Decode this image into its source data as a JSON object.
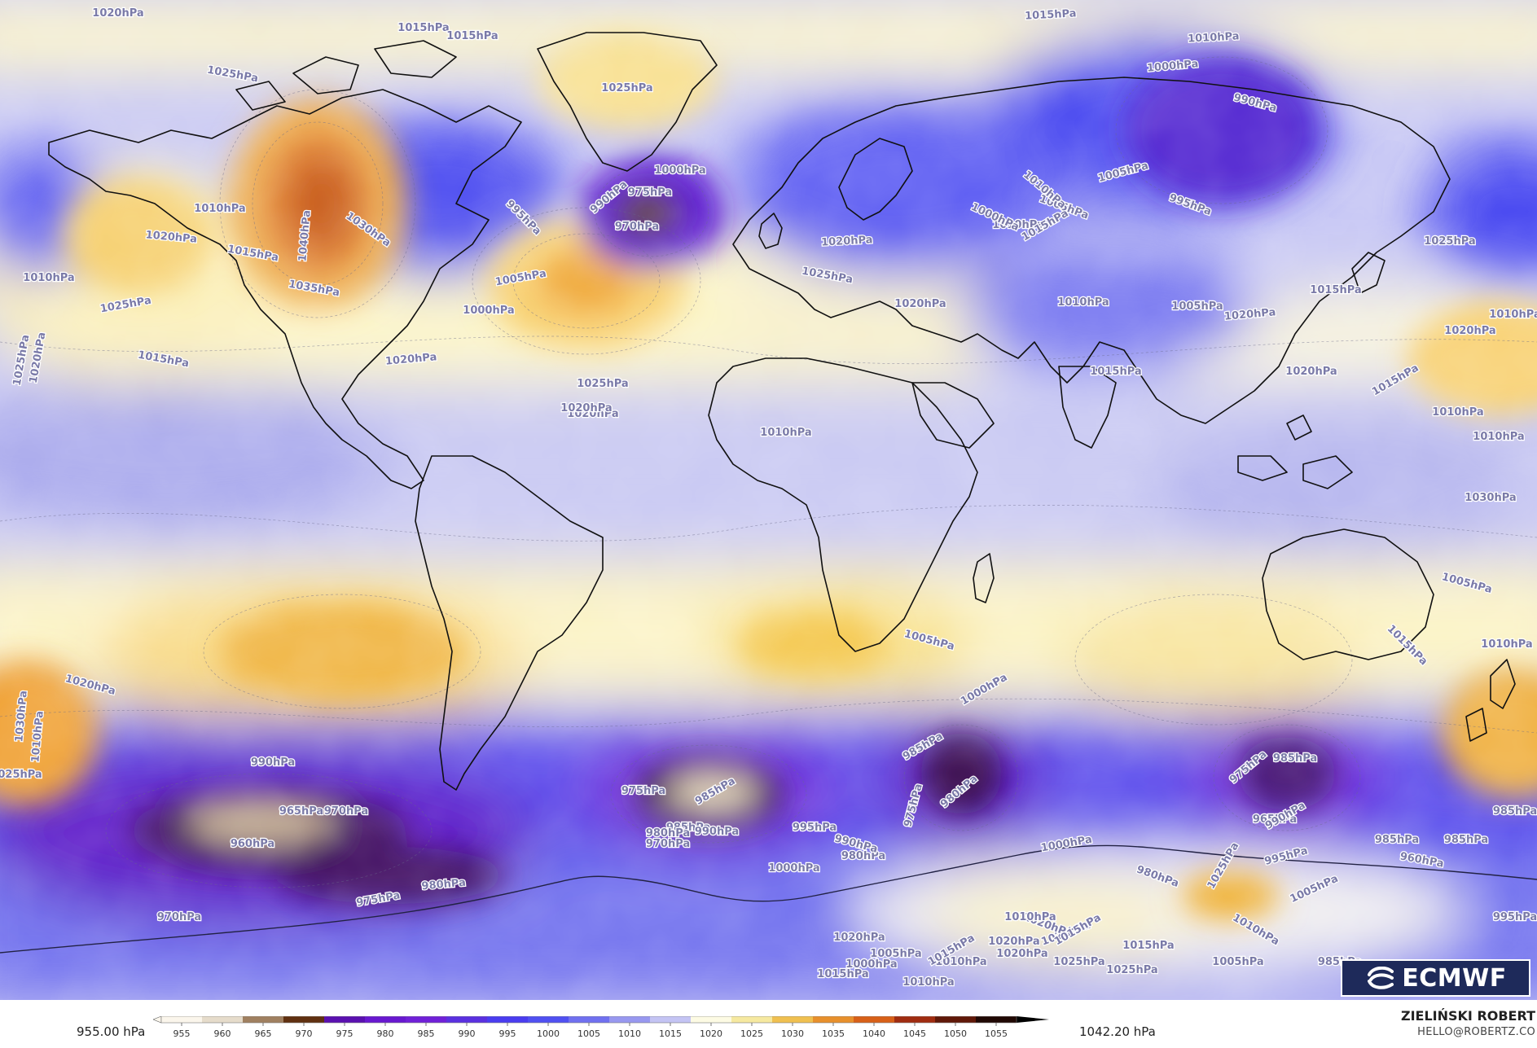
{
  "colorbar": {
    "min_label": "955.00 hPa",
    "max_label": "1042.20 hPa",
    "ticks": [
      "955",
      "960",
      "965",
      "970",
      "975",
      "980",
      "985",
      "990",
      "995",
      "1000",
      "1005",
      "1010",
      "1015",
      "1020",
      "1025",
      "1030",
      "1035",
      "1040",
      "1045",
      "1050",
      "1055"
    ],
    "colors": [
      "#fbf6ec",
      "#e6dccb",
      "#a08060",
      "#603010",
      "#5a10b0",
      "#6818d0",
      "#7020d8",
      "#5a30e0",
      "#4a3cf0",
      "#5050f2",
      "#7070f0",
      "#9898f0",
      "#c4c4f4",
      "#fdfbe4",
      "#f6e9a0",
      "#f0c050",
      "#e8902c",
      "#d86018",
      "#a02c10",
      "#601808",
      "#200804"
    ]
  },
  "brand": {
    "logo_text": "ECMWF"
  },
  "author": {
    "name": "ZIELIŃSKI ROBERT",
    "contact": "HELLO@ROBERTZ.CO"
  },
  "isobars": [
    {
      "text": "1020hPa"
    },
    {
      "text": "1015hPa"
    },
    {
      "text": "1015hPa"
    },
    {
      "text": "1025hPa"
    },
    {
      "text": "1015hPa"
    },
    {
      "text": "1010hPa"
    },
    {
      "text": "1000hPa"
    },
    {
      "text": "990hPa"
    },
    {
      "text": "1025hPa"
    },
    {
      "text": "1005hPa"
    },
    {
      "text": "1010hPa"
    },
    {
      "text": "1020hPa"
    },
    {
      "text": "1015hPa"
    },
    {
      "text": "1025hPa"
    },
    {
      "text": "1030hPa"
    },
    {
      "text": "1040hPa"
    },
    {
      "text": "1035hPa"
    },
    {
      "text": "1020hPa"
    },
    {
      "text": "1015hPa"
    },
    {
      "text": "1010hPa"
    },
    {
      "text": "1025hPa"
    },
    {
      "text": "1020hPa"
    },
    {
      "text": "1020hPa"
    },
    {
      "text": "1025hPa"
    },
    {
      "text": "1025hPa"
    },
    {
      "text": "1010hPa"
    },
    {
      "text": "1005hPa"
    },
    {
      "text": "1000hPa"
    },
    {
      "text": "995hPa"
    },
    {
      "text": "990hPa"
    },
    {
      "text": "975hPa"
    },
    {
      "text": "970hPa"
    },
    {
      "text": "1000hPa"
    },
    {
      "text": "1020hPa"
    },
    {
      "text": "1010hPa"
    },
    {
      "text": "1000hPa"
    },
    {
      "text": "1005hPa"
    },
    {
      "text": "1010hPa"
    },
    {
      "text": "1015hPa"
    },
    {
      "text": "1020hPa"
    },
    {
      "text": "1020hPa"
    },
    {
      "text": "1015hPa"
    },
    {
      "text": "1010hPa"
    },
    {
      "text": "1005hPa"
    },
    {
      "text": "995hPa"
    },
    {
      "text": "1020hPa"
    },
    {
      "text": "1015hPa"
    },
    {
      "text": "1010hPa"
    },
    {
      "text": "1010hPa"
    },
    {
      "text": "1020hPa"
    },
    {
      "text": "1025hPa"
    },
    {
      "text": "1015hPa"
    },
    {
      "text": "1020hPa"
    },
    {
      "text": "1010hPa"
    },
    {
      "text": "1005hPa"
    },
    {
      "text": "1015hPa"
    },
    {
      "text": "1010hPa"
    },
    {
      "text": "1030hPa"
    },
    {
      "text": "1025hPa"
    },
    {
      "text": "1020hPa"
    },
    {
      "text": "1010hPa"
    },
    {
      "text": "1005hPa"
    },
    {
      "text": "1000hPa"
    },
    {
      "text": "990hPa"
    },
    {
      "text": "965hPa"
    },
    {
      "text": "970hPa"
    },
    {
      "text": "960hPa"
    },
    {
      "text": "975hPa"
    },
    {
      "text": "980hPa"
    },
    {
      "text": "970hPa"
    },
    {
      "text": "980hPa"
    },
    {
      "text": "985hPa"
    },
    {
      "text": "985hPa"
    },
    {
      "text": "995hPa"
    },
    {
      "text": "970hPa"
    },
    {
      "text": "980hPa"
    },
    {
      "text": "965hPa"
    },
    {
      "text": "960hPa"
    },
    {
      "text": "975hPa"
    },
    {
      "text": "985hPa"
    },
    {
      "text": "990hPa"
    },
    {
      "text": "985hPa"
    },
    {
      "text": "975hPa"
    },
    {
      "text": "980hPa"
    },
    {
      "text": "990hPa"
    },
    {
      "text": "1000hPa"
    },
    {
      "text": "985hPa"
    },
    {
      "text": "975hPa"
    },
    {
      "text": "980hPa"
    },
    {
      "text": "990hPa"
    },
    {
      "text": "1000hPa"
    },
    {
      "text": "995hPa"
    },
    {
      "text": "985hPa"
    },
    {
      "text": "995hPa"
    },
    {
      "text": "1005hPa"
    },
    {
      "text": "1010hPa"
    },
    {
      "text": "1020hPa"
    },
    {
      "text": "1025hPa"
    },
    {
      "text": "1010hPa"
    },
    {
      "text": "1005hPa"
    },
    {
      "text": "1025hPa"
    },
    {
      "text": "1020hPa"
    },
    {
      "text": "1015hPa"
    },
    {
      "text": "1020hPa"
    },
    {
      "text": "1000hPa"
    },
    {
      "text": "985hPa"
    },
    {
      "text": "985hPa"
    },
    {
      "text": "1015hPa"
    },
    {
      "text": "1020hPa"
    },
    {
      "text": "1015hPa"
    },
    {
      "text": "1010hPa"
    },
    {
      "text": "1025hPa"
    },
    {
      "text": "1020hPa"
    },
    {
      "text": "1010hPa"
    },
    {
      "text": "1015hPa"
    },
    {
      "text": "1005hPa"
    },
    {
      "text": "1020hPa"
    },
    {
      "text": "1030hPa"
    }
  ]
}
